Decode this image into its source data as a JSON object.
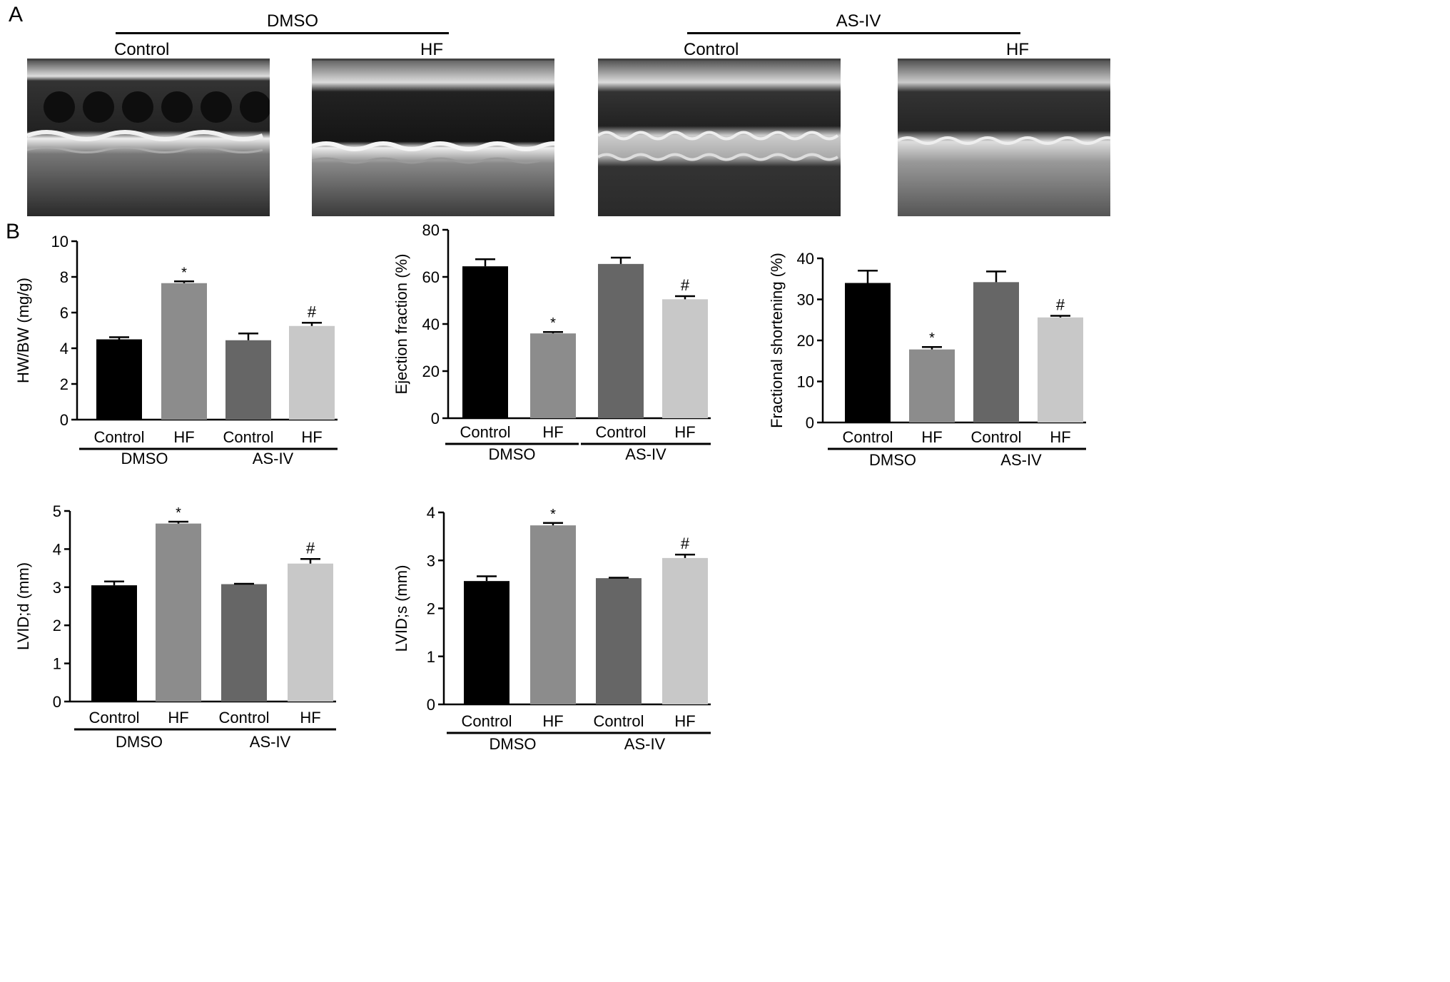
{
  "panel_labels": {
    "a": "A",
    "b": "B"
  },
  "panel_a": {
    "groups": [
      {
        "label": "DMSO"
      },
      {
        "label": "AS-IV"
      }
    ],
    "images": [
      {
        "label": "Control"
      },
      {
        "label": "HF"
      },
      {
        "label": "Control"
      },
      {
        "label": "HF"
      }
    ]
  },
  "colors": {
    "control_dmso": "#000000",
    "hf_dmso": "#8c8c8c",
    "control_asiv": "#666666",
    "hf_asiv": "#c8c8c8"
  },
  "chart_data": [
    {
      "type": "bar",
      "ylabel": "HW/BW (mg/g)",
      "ylim": [
        0,
        10
      ],
      "yticks": [
        0,
        2,
        4,
        6,
        8,
        10
      ],
      "categories": [
        "Control",
        "HF",
        "Control",
        "HF"
      ],
      "groups": [
        "DMSO",
        "AS-IV"
      ],
      "values": [
        4.5,
        7.65,
        4.45,
        5.25
      ],
      "errors": [
        0.12,
        0.1,
        0.38,
        0.18
      ],
      "annotations": [
        "",
        "*",
        "",
        "#"
      ]
    },
    {
      "type": "bar",
      "ylabel": "Ejection fraction (%)",
      "ylim": [
        0,
        80
      ],
      "yticks": [
        0,
        20,
        40,
        60,
        80
      ],
      "categories": [
        "Control",
        "HF",
        "Control",
        "HF"
      ],
      "groups": [
        "DMSO",
        "AS-IV"
      ],
      "values": [
        64.5,
        36.0,
        65.5,
        50.5
      ],
      "errors": [
        3.0,
        0.6,
        2.7,
        1.3
      ],
      "annotations": [
        "",
        "*",
        "",
        "#"
      ]
    },
    {
      "type": "bar",
      "ylabel": "Fractional shortening (%)",
      "ylim": [
        0,
        40
      ],
      "yticks": [
        0,
        10,
        20,
        30,
        40
      ],
      "categories": [
        "Control",
        "HF",
        "Control",
        "HF"
      ],
      "groups": [
        "DMSO",
        "AS-IV"
      ],
      "values": [
        34.0,
        17.8,
        34.2,
        25.6
      ],
      "errors": [
        3.0,
        0.6,
        2.6,
        0.4
      ],
      "annotations": [
        "",
        "*",
        "",
        "#"
      ]
    },
    {
      "type": "bar",
      "ylabel": "LVID;d (mm)",
      "ylim": [
        0,
        5
      ],
      "yticks": [
        0,
        1,
        2,
        3,
        4,
        5
      ],
      "categories": [
        "Control",
        "HF",
        "Control",
        "HF"
      ],
      "groups": [
        "DMSO",
        "AS-IV"
      ],
      "values": [
        3.05,
        4.67,
        3.08,
        3.62
      ],
      "errors": [
        0.1,
        0.05,
        0.01,
        0.12
      ],
      "annotations": [
        "",
        "*",
        "",
        "#"
      ]
    },
    {
      "type": "bar",
      "ylabel": "LVID;s (mm)",
      "ylim": [
        0,
        4
      ],
      "yticks": [
        0,
        1,
        2,
        3,
        4
      ],
      "categories": [
        "Control",
        "HF",
        "Control",
        "HF"
      ],
      "groups": [
        "DMSO",
        "AS-IV"
      ],
      "values": [
        2.57,
        3.73,
        2.63,
        3.05
      ],
      "errors": [
        0.1,
        0.05,
        0.01,
        0.07
      ],
      "annotations": [
        "",
        "*",
        "",
        "#"
      ]
    }
  ]
}
